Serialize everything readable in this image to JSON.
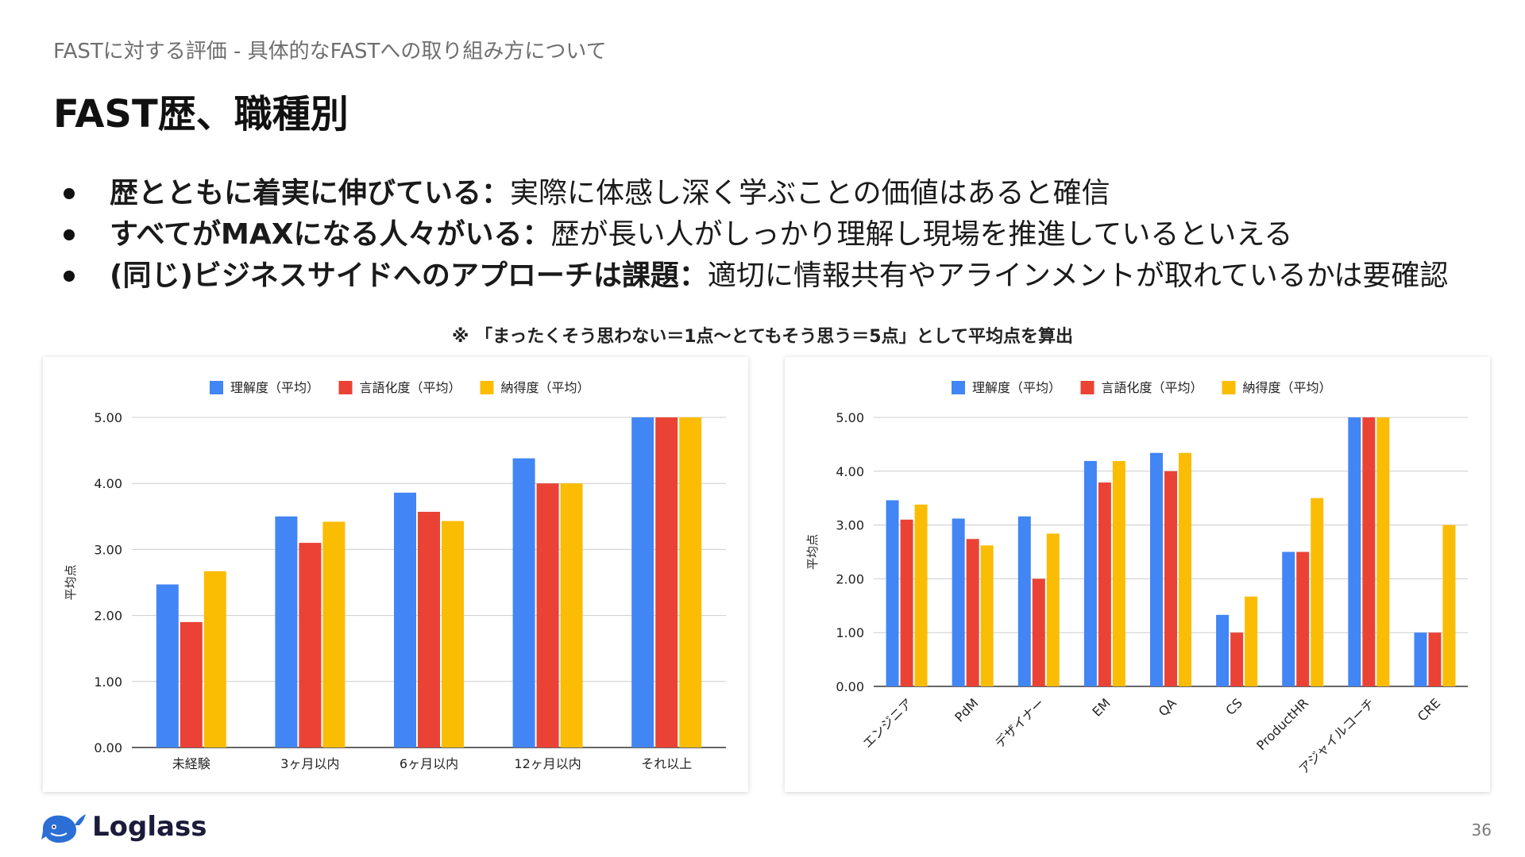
{
  "header": {
    "breadcrumb": "FASTに対する評価 - 具体的なFASTへの取り組み方について",
    "title": "FAST歴、職種別"
  },
  "bullets": [
    {
      "bold": "歴とともに着実に伸びている：",
      "text": "実際に体感し深く学ぶことの価値はあると確信"
    },
    {
      "bold": "すべてがMAXになる人々がいる：",
      "text": "歴が長い人がしっかり理解し現場を推進しているといえる"
    },
    {
      "bold": "(同じ)ビジネスサイドへのアプローチは課題：",
      "text": "適切に情報共有やアラインメントが取れているかは要確認"
    }
  ],
  "note": "※ 「まったくそう思わない＝1点〜とてもそう思う＝5点」として平均点を算出",
  "footer": {
    "logo_text": "Loglass",
    "page_number": "36"
  },
  "colors": {
    "blue": "#4285F4",
    "red": "#EA4335",
    "yellow": "#FBBC04"
  },
  "chart_data": [
    {
      "type": "bar",
      "categories": [
        "未経験",
        "3ヶ月以内",
        "6ヶ月以内",
        "12ヶ月以内",
        "それ以上"
      ],
      "series": [
        {
          "name": "理解度（平均）",
          "color": "#4285F4",
          "values": [
            2.47,
            3.5,
            3.86,
            4.38,
            5.0
          ]
        },
        {
          "name": "言語化度（平均）",
          "color": "#EA4335",
          "values": [
            1.9,
            3.1,
            3.57,
            4.0,
            5.0
          ]
        },
        {
          "name": "納得度（平均）",
          "color": "#FBBC04",
          "values": [
            2.67,
            3.42,
            3.43,
            4.0,
            5.0
          ]
        }
      ],
      "ylabel": "平均点",
      "ylim": [
        0,
        5
      ],
      "yticks": [
        "0.00",
        "1.00",
        "2.00",
        "3.00",
        "4.00",
        "5.00"
      ],
      "legend": "top",
      "grid": true,
      "xlabel_rotation": 0
    },
    {
      "type": "bar",
      "categories": [
        "エンジニア",
        "PdM",
        "デザイナー",
        "EM",
        "QA",
        "CS",
        "ProductHR",
        "アジャイルコーチ",
        "CRE"
      ],
      "series": [
        {
          "name": "理解度（平均）",
          "color": "#4285F4",
          "values": [
            3.46,
            3.12,
            3.16,
            4.19,
            4.34,
            1.33,
            2.5,
            5.0,
            1.0
          ]
        },
        {
          "name": "言語化度（平均）",
          "color": "#EA4335",
          "values": [
            3.1,
            2.74,
            2.0,
            3.79,
            4.0,
            1.0,
            2.5,
            5.0,
            1.0
          ]
        },
        {
          "name": "納得度（平均）",
          "color": "#FBBC04",
          "values": [
            3.38,
            2.62,
            2.84,
            4.19,
            4.34,
            1.67,
            3.5,
            5.0,
            3.0
          ]
        }
      ],
      "ylabel": "平均点",
      "ylim": [
        0,
        5
      ],
      "yticks": [
        "0.00",
        "1.00",
        "2.00",
        "3.00",
        "4.00",
        "5.00"
      ],
      "legend": "top",
      "grid": true,
      "xlabel_rotation": -45
    }
  ]
}
